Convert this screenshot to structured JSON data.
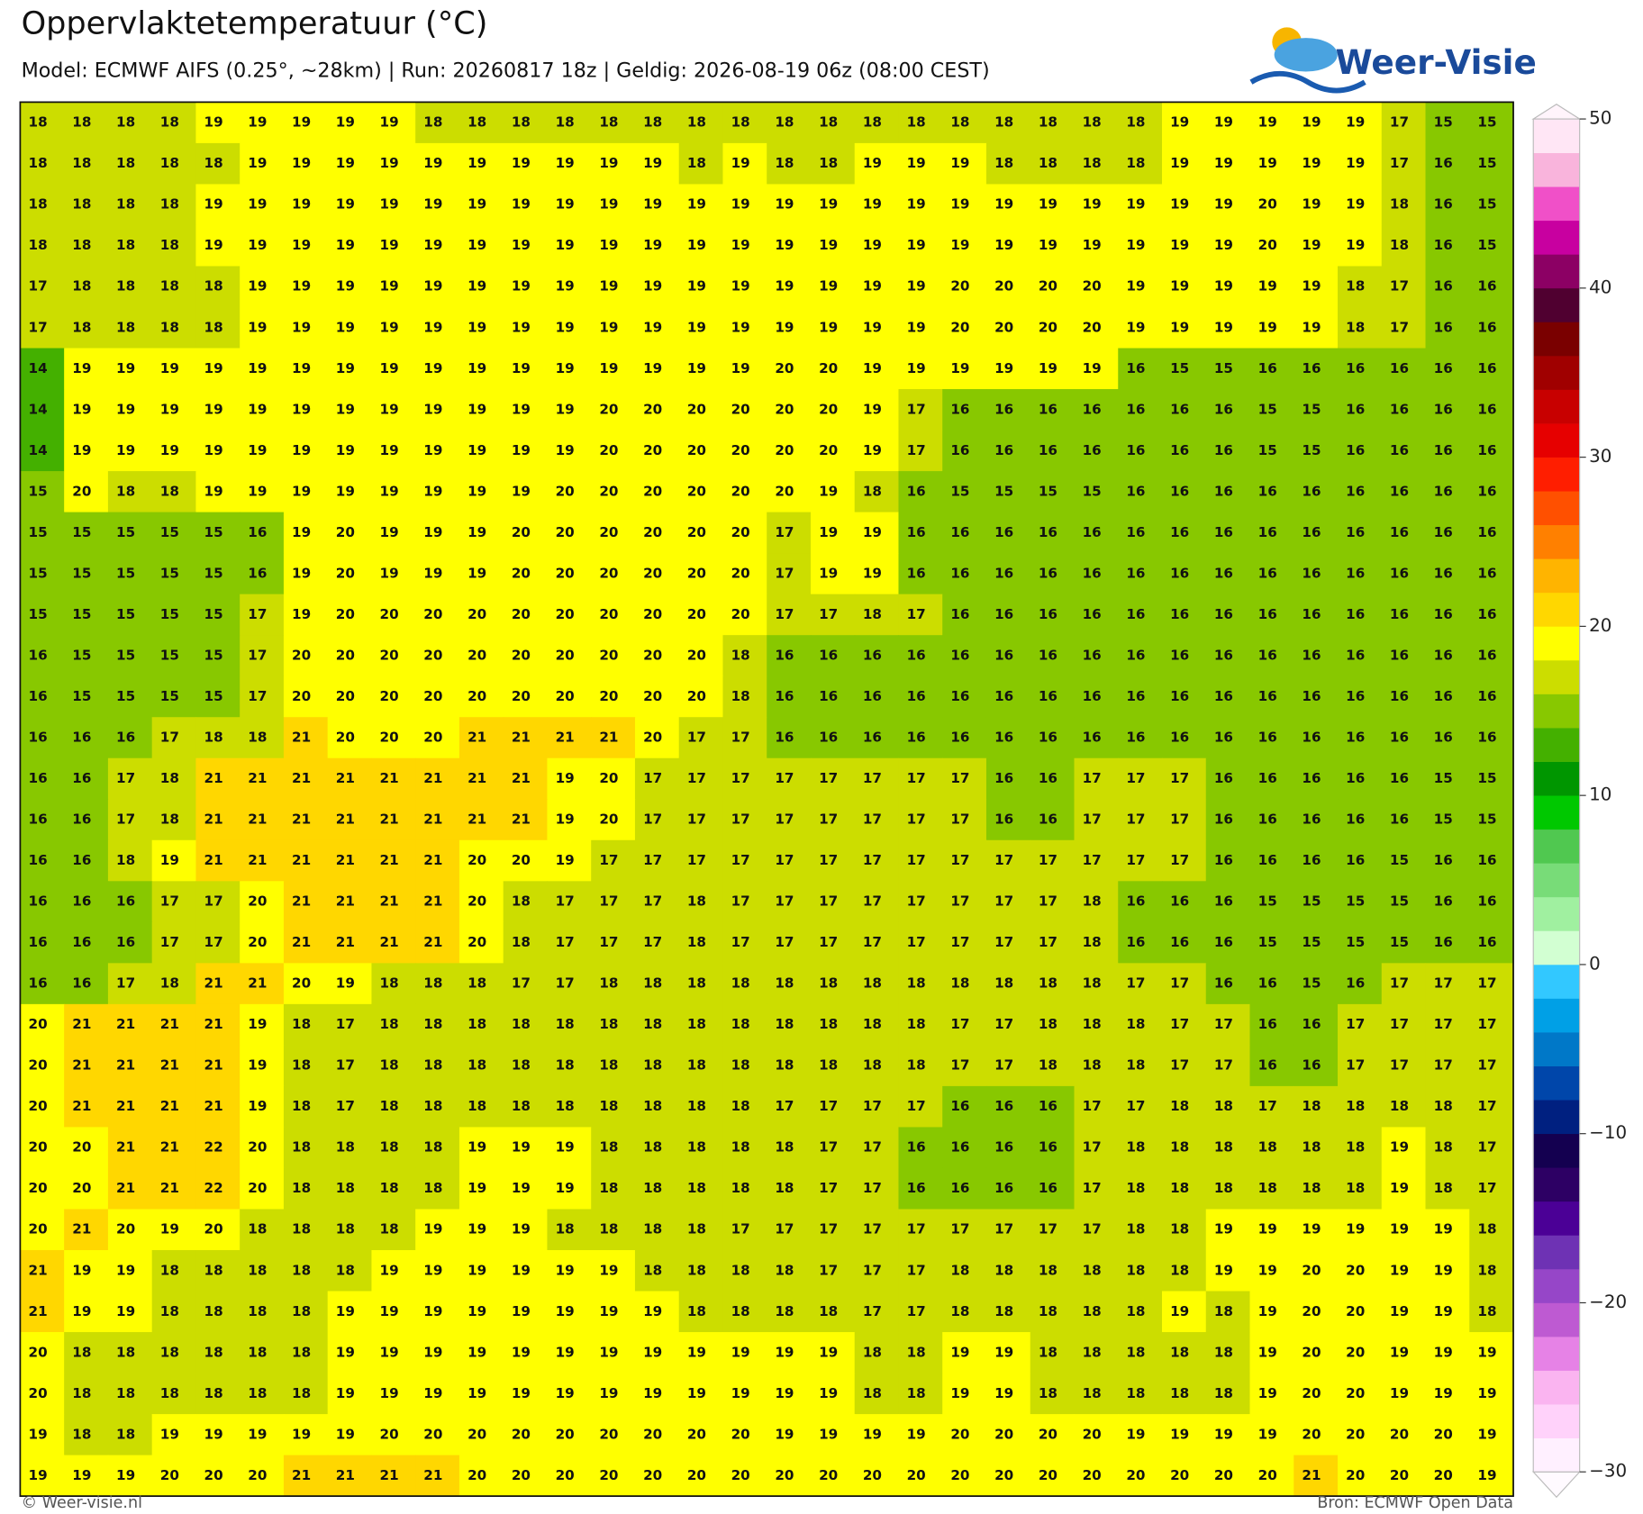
{
  "chart_data": {
    "type": "heatmap",
    "title": "Oppervlaktetemperatuur (°C)",
    "subtitle": "Model: ECMWF AIFS (0.25°, ~28km)  |  Run: 20260817 18z  |  Geldig: 2026-08-19 06z (08:00 CEST)",
    "logo": "Weer-Visie",
    "credit": "© Weer-visie.nl",
    "source": "Bron: ECMWF Open Data",
    "values": [
      [
        18,
        18,
        18,
        18,
        19,
        19,
        19,
        19,
        19,
        18,
        18,
        18,
        18,
        18,
        18,
        18,
        18,
        18,
        18,
        18,
        18,
        18,
        18,
        18,
        18,
        18,
        19,
        19,
        19,
        19,
        19,
        17,
        15,
        15
      ],
      [
        18,
        18,
        18,
        18,
        18,
        19,
        19,
        19,
        19,
        19,
        19,
        19,
        19,
        19,
        19,
        18,
        19,
        18,
        18,
        19,
        19,
        19,
        18,
        18,
        18,
        18,
        19,
        19,
        19,
        19,
        19,
        17,
        16,
        15
      ],
      [
        18,
        18,
        18,
        18,
        19,
        19,
        19,
        19,
        19,
        19,
        19,
        19,
        19,
        19,
        19,
        19,
        19,
        19,
        19,
        19,
        19,
        19,
        19,
        19,
        19,
        19,
        19,
        19,
        20,
        19,
        19,
        18,
        16,
        15
      ],
      [
        18,
        18,
        18,
        18,
        19,
        19,
        19,
        19,
        19,
        19,
        19,
        19,
        19,
        19,
        19,
        19,
        19,
        19,
        19,
        19,
        19,
        19,
        19,
        19,
        19,
        19,
        19,
        19,
        20,
        19,
        19,
        18,
        16,
        15
      ],
      [
        17,
        18,
        18,
        18,
        18,
        19,
        19,
        19,
        19,
        19,
        19,
        19,
        19,
        19,
        19,
        19,
        19,
        19,
        19,
        19,
        19,
        20,
        20,
        20,
        20,
        19,
        19,
        19,
        19,
        19,
        18,
        17,
        16,
        16
      ],
      [
        17,
        18,
        18,
        18,
        18,
        19,
        19,
        19,
        19,
        19,
        19,
        19,
        19,
        19,
        19,
        19,
        19,
        19,
        19,
        19,
        19,
        20,
        20,
        20,
        20,
        19,
        19,
        19,
        19,
        19,
        18,
        17,
        16,
        16
      ],
      [
        14,
        19,
        19,
        19,
        19,
        19,
        19,
        19,
        19,
        19,
        19,
        19,
        19,
        19,
        19,
        19,
        19,
        20,
        20,
        19,
        19,
        19,
        19,
        19,
        19,
        16,
        15,
        15,
        16,
        16,
        16,
        16,
        16,
        16
      ],
      [
        14,
        19,
        19,
        19,
        19,
        19,
        19,
        19,
        19,
        19,
        19,
        19,
        19,
        20,
        20,
        20,
        20,
        20,
        20,
        19,
        17,
        16,
        16,
        16,
        16,
        16,
        16,
        16,
        15,
        15,
        16,
        16,
        16,
        16
      ],
      [
        14,
        19,
        19,
        19,
        19,
        19,
        19,
        19,
        19,
        19,
        19,
        19,
        19,
        20,
        20,
        20,
        20,
        20,
        20,
        19,
        17,
        16,
        16,
        16,
        16,
        16,
        16,
        16,
        15,
        15,
        16,
        16,
        16,
        16
      ],
      [
        15,
        20,
        18,
        18,
        19,
        19,
        19,
        19,
        19,
        19,
        19,
        19,
        20,
        20,
        20,
        20,
        20,
        20,
        19,
        18,
        16,
        15,
        15,
        15,
        15,
        16,
        16,
        16,
        16,
        16,
        16,
        16,
        16,
        16
      ],
      [
        15,
        15,
        15,
        15,
        15,
        16,
        19,
        20,
        19,
        19,
        19,
        20,
        20,
        20,
        20,
        20,
        20,
        17,
        19,
        19,
        16,
        16,
        16,
        16,
        16,
        16,
        16,
        16,
        16,
        16,
        16,
        16,
        16,
        16
      ],
      [
        15,
        15,
        15,
        15,
        15,
        16,
        19,
        20,
        19,
        19,
        19,
        20,
        20,
        20,
        20,
        20,
        20,
        17,
        19,
        19,
        16,
        16,
        16,
        16,
        16,
        16,
        16,
        16,
        16,
        16,
        16,
        16,
        16,
        16
      ],
      [
        15,
        15,
        15,
        15,
        15,
        17,
        19,
        20,
        20,
        20,
        20,
        20,
        20,
        20,
        20,
        20,
        20,
        17,
        17,
        18,
        17,
        16,
        16,
        16,
        16,
        16,
        16,
        16,
        16,
        16,
        16,
        16,
        16,
        16
      ],
      [
        16,
        15,
        15,
        15,
        15,
        17,
        20,
        20,
        20,
        20,
        20,
        20,
        20,
        20,
        20,
        20,
        18,
        16,
        16,
        16,
        16,
        16,
        16,
        16,
        16,
        16,
        16,
        16,
        16,
        16,
        16,
        16,
        16,
        16
      ],
      [
        16,
        15,
        15,
        15,
        15,
        17,
        20,
        20,
        20,
        20,
        20,
        20,
        20,
        20,
        20,
        20,
        18,
        16,
        16,
        16,
        16,
        16,
        16,
        16,
        16,
        16,
        16,
        16,
        16,
        16,
        16,
        16,
        16,
        16
      ],
      [
        16,
        16,
        16,
        17,
        18,
        18,
        21,
        20,
        20,
        20,
        21,
        21,
        21,
        21,
        20,
        17,
        17,
        16,
        16,
        16,
        16,
        16,
        16,
        16,
        16,
        16,
        16,
        16,
        16,
        16,
        16,
        16,
        16,
        16
      ],
      [
        16,
        16,
        17,
        18,
        21,
        21,
        21,
        21,
        21,
        21,
        21,
        21,
        19,
        20,
        17,
        17,
        17,
        17,
        17,
        17,
        17,
        17,
        16,
        16,
        17,
        17,
        17,
        16,
        16,
        16,
        16,
        16,
        15,
        15
      ],
      [
        16,
        16,
        17,
        18,
        21,
        21,
        21,
        21,
        21,
        21,
        21,
        21,
        19,
        20,
        17,
        17,
        17,
        17,
        17,
        17,
        17,
        17,
        16,
        16,
        17,
        17,
        17,
        16,
        16,
        16,
        16,
        16,
        15,
        15
      ],
      [
        16,
        16,
        18,
        19,
        21,
        21,
        21,
        21,
        21,
        21,
        20,
        20,
        19,
        17,
        17,
        17,
        17,
        17,
        17,
        17,
        17,
        17,
        17,
        17,
        17,
        17,
        17,
        16,
        16,
        16,
        16,
        15,
        16,
        16
      ],
      [
        16,
        16,
        16,
        17,
        17,
        20,
        21,
        21,
        21,
        21,
        20,
        18,
        17,
        17,
        17,
        18,
        17,
        17,
        17,
        17,
        17,
        17,
        17,
        17,
        18,
        16,
        16,
        16,
        15,
        15,
        15,
        15,
        16,
        16
      ],
      [
        16,
        16,
        16,
        17,
        17,
        20,
        21,
        21,
        21,
        21,
        20,
        18,
        17,
        17,
        17,
        18,
        17,
        17,
        17,
        17,
        17,
        17,
        17,
        17,
        18,
        16,
        16,
        16,
        15,
        15,
        15,
        15,
        16,
        16
      ],
      [
        16,
        16,
        17,
        18,
        21,
        21,
        20,
        19,
        18,
        18,
        18,
        17,
        17,
        18,
        18,
        18,
        18,
        18,
        18,
        18,
        18,
        18,
        18,
        18,
        18,
        17,
        17,
        16,
        16,
        15,
        16,
        17,
        17,
        17
      ],
      [
        20,
        21,
        21,
        21,
        21,
        19,
        18,
        17,
        18,
        18,
        18,
        18,
        18,
        18,
        18,
        18,
        18,
        18,
        18,
        18,
        18,
        17,
        17,
        18,
        18,
        18,
        17,
        17,
        16,
        16,
        17,
        17,
        17,
        17
      ],
      [
        20,
        21,
        21,
        21,
        21,
        19,
        18,
        17,
        18,
        18,
        18,
        18,
        18,
        18,
        18,
        18,
        18,
        18,
        18,
        18,
        18,
        17,
        17,
        18,
        18,
        18,
        17,
        17,
        16,
        16,
        17,
        17,
        17,
        17
      ],
      [
        20,
        21,
        21,
        21,
        21,
        19,
        18,
        17,
        18,
        18,
        18,
        18,
        18,
        18,
        18,
        18,
        18,
        17,
        17,
        17,
        17,
        16,
        16,
        16,
        17,
        17,
        18,
        18,
        17,
        18,
        18,
        18,
        18,
        17
      ],
      [
        20,
        20,
        21,
        21,
        22,
        20,
        18,
        18,
        18,
        18,
        19,
        19,
        19,
        18,
        18,
        18,
        18,
        18,
        17,
        17,
        16,
        16,
        16,
        16,
        17,
        18,
        18,
        18,
        18,
        18,
        18,
        19,
        18,
        17
      ],
      [
        20,
        20,
        21,
        21,
        22,
        20,
        18,
        18,
        18,
        18,
        19,
        19,
        19,
        18,
        18,
        18,
        18,
        18,
        17,
        17,
        16,
        16,
        16,
        16,
        17,
        18,
        18,
        18,
        18,
        18,
        18,
        19,
        18,
        17
      ],
      [
        20,
        21,
        20,
        19,
        20,
        18,
        18,
        18,
        18,
        19,
        19,
        19,
        18,
        18,
        18,
        18,
        17,
        17,
        17,
        17,
        17,
        17,
        17,
        17,
        17,
        18,
        18,
        19,
        19,
        19,
        19,
        19,
        19,
        18
      ],
      [
        21,
        19,
        19,
        18,
        18,
        18,
        18,
        18,
        19,
        19,
        19,
        19,
        19,
        19,
        18,
        18,
        18,
        18,
        17,
        17,
        17,
        18,
        18,
        18,
        18,
        18,
        18,
        19,
        19,
        20,
        20,
        19,
        19,
        18
      ],
      [
        21,
        19,
        19,
        18,
        18,
        18,
        18,
        19,
        19,
        19,
        19,
        19,
        19,
        19,
        19,
        18,
        18,
        18,
        18,
        17,
        17,
        18,
        18,
        18,
        18,
        18,
        19,
        18,
        19,
        20,
        20,
        19,
        19,
        18
      ],
      [
        20,
        18,
        18,
        18,
        18,
        18,
        18,
        19,
        19,
        19,
        19,
        19,
        19,
        19,
        19,
        19,
        19,
        19,
        19,
        18,
        18,
        19,
        19,
        18,
        18,
        18,
        18,
        18,
        19,
        20,
        20,
        19,
        19,
        19
      ],
      [
        20,
        18,
        18,
        18,
        18,
        18,
        18,
        19,
        19,
        19,
        19,
        19,
        19,
        19,
        19,
        19,
        19,
        19,
        19,
        18,
        18,
        19,
        19,
        18,
        18,
        18,
        18,
        18,
        19,
        20,
        20,
        19,
        19,
        19
      ],
      [
        19,
        18,
        18,
        19,
        19,
        19,
        19,
        19,
        20,
        20,
        20,
        20,
        20,
        20,
        20,
        20,
        20,
        19,
        19,
        19,
        19,
        20,
        20,
        20,
        20,
        19,
        19,
        19,
        19,
        20,
        20,
        20,
        20,
        19
      ],
      [
        19,
        19,
        19,
        20,
        20,
        20,
        21,
        21,
        21,
        21,
        20,
        20,
        20,
        20,
        20,
        20,
        20,
        20,
        20,
        20,
        20,
        20,
        20,
        20,
        20,
        20,
        20,
        20,
        20,
        21,
        20,
        20,
        20,
        19
      ]
    ],
    "clim": [
      -30,
      50
    ],
    "cticks": [
      {
        "value": -30,
        "label": "−30"
      },
      {
        "value": -20,
        "label": "−20"
      },
      {
        "value": -10,
        "label": "−10"
      },
      0,
      10,
      20,
      30,
      40,
      50
    ],
    "colors": [
      "#fff0ff",
      "#ffd2fa",
      "#fab4f0",
      "#e682e6",
      "#be5ad2",
      "#9646c8",
      "#6e32b4",
      "#4b0096",
      "#2d0064",
      "#140050",
      "#002080",
      "#0046aa",
      "#0078c8",
      "#00a0e6",
      "#32c8ff",
      "#d2ffd2",
      "#a0f0a0",
      "#78dc78",
      "#50c850",
      "#00c800",
      "#009600",
      "#44b000",
      "#88c800",
      "#ccdd00",
      "#ffff00",
      "#ffd700",
      "#ffb400",
      "#ff8000",
      "#ff5000",
      "#ff1e00",
      "#e60000",
      "#c80000",
      "#a00000",
      "#7a0000",
      "#500030",
      "#8c0064",
      "#c800a0",
      "#f050c8",
      "#f9b4dc",
      "#ffe6f5"
    ]
  }
}
